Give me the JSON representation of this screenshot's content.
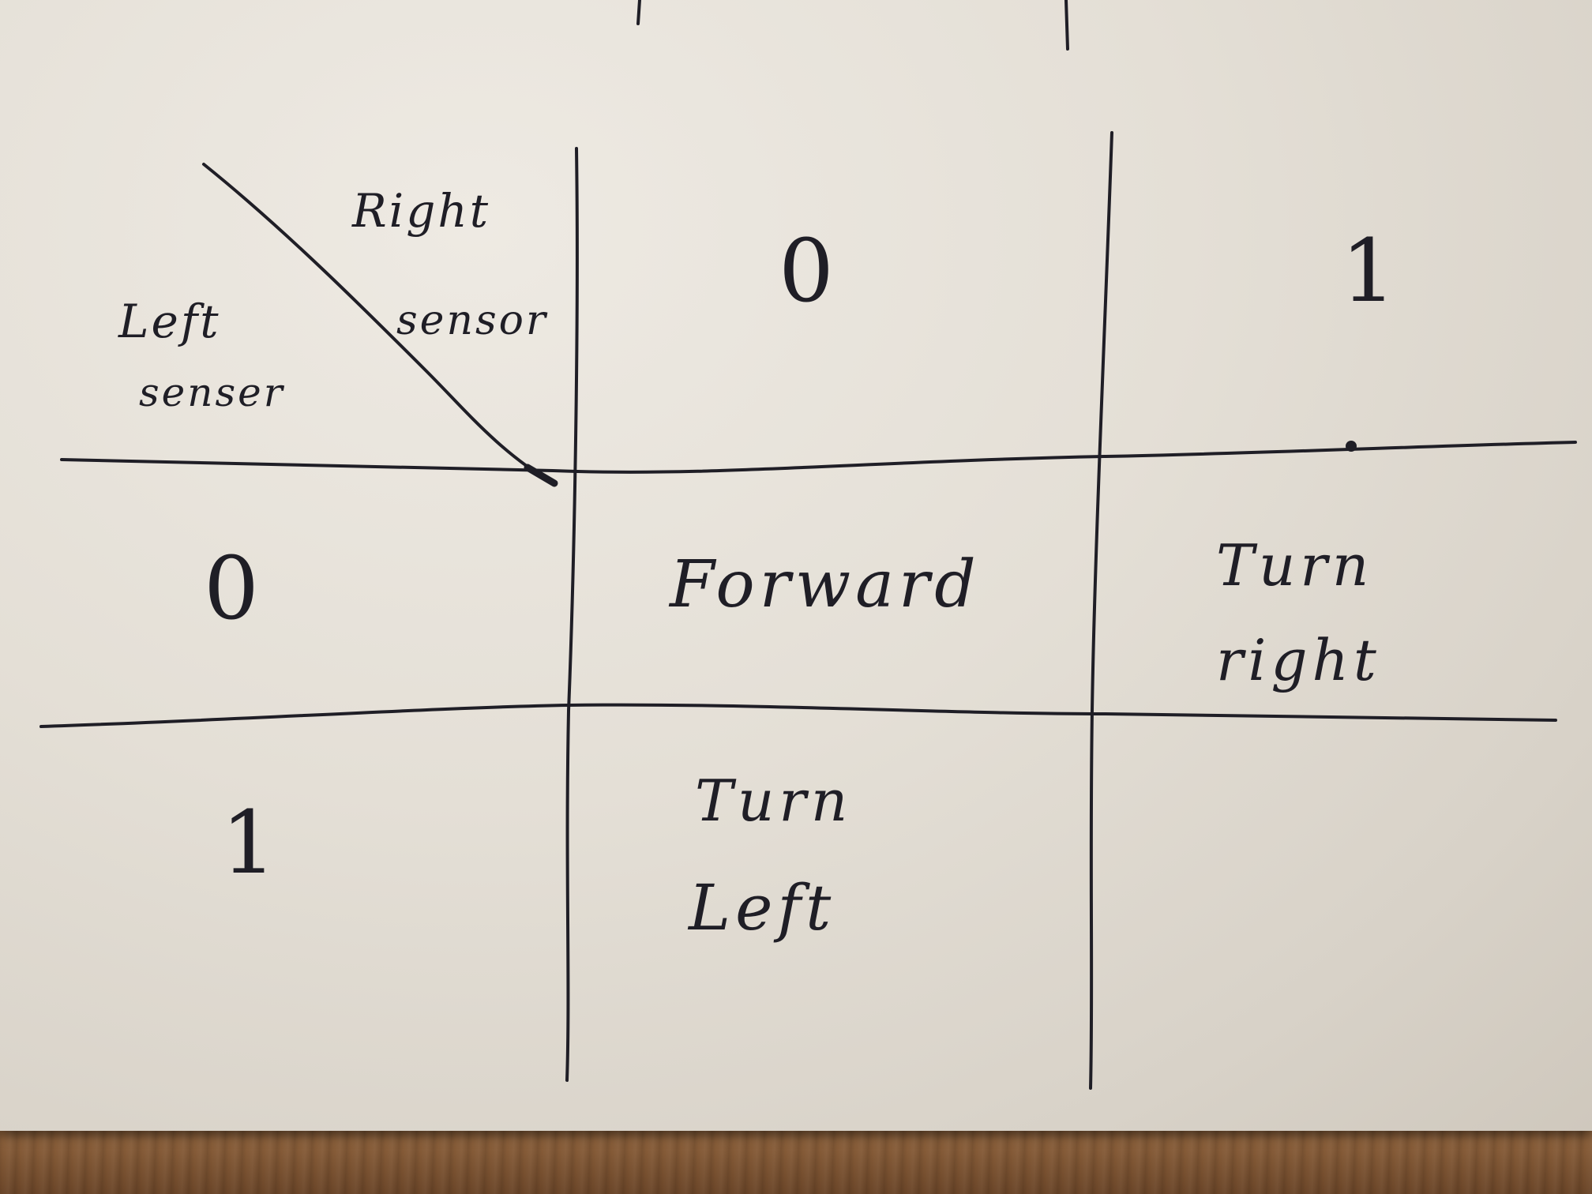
{
  "table": {
    "corner": {
      "right_label": "Right",
      "right_label_2": "sensor",
      "left_label": "Left",
      "left_label_2": "senser"
    },
    "column_headers": [
      "0",
      "1"
    ],
    "row_headers": [
      "0",
      "1"
    ],
    "cells": {
      "r0_c0": "Forward",
      "r0_c1_line1": "Turn",
      "r0_c1_line2": "right",
      "r1_c0_line1": "Turn",
      "r1_c0_line2": "Left",
      "r1_c1": ""
    }
  },
  "colors": {
    "ink": "#1f1e26",
    "paper": "#e6e1d8",
    "wood": "#7a5637"
  }
}
